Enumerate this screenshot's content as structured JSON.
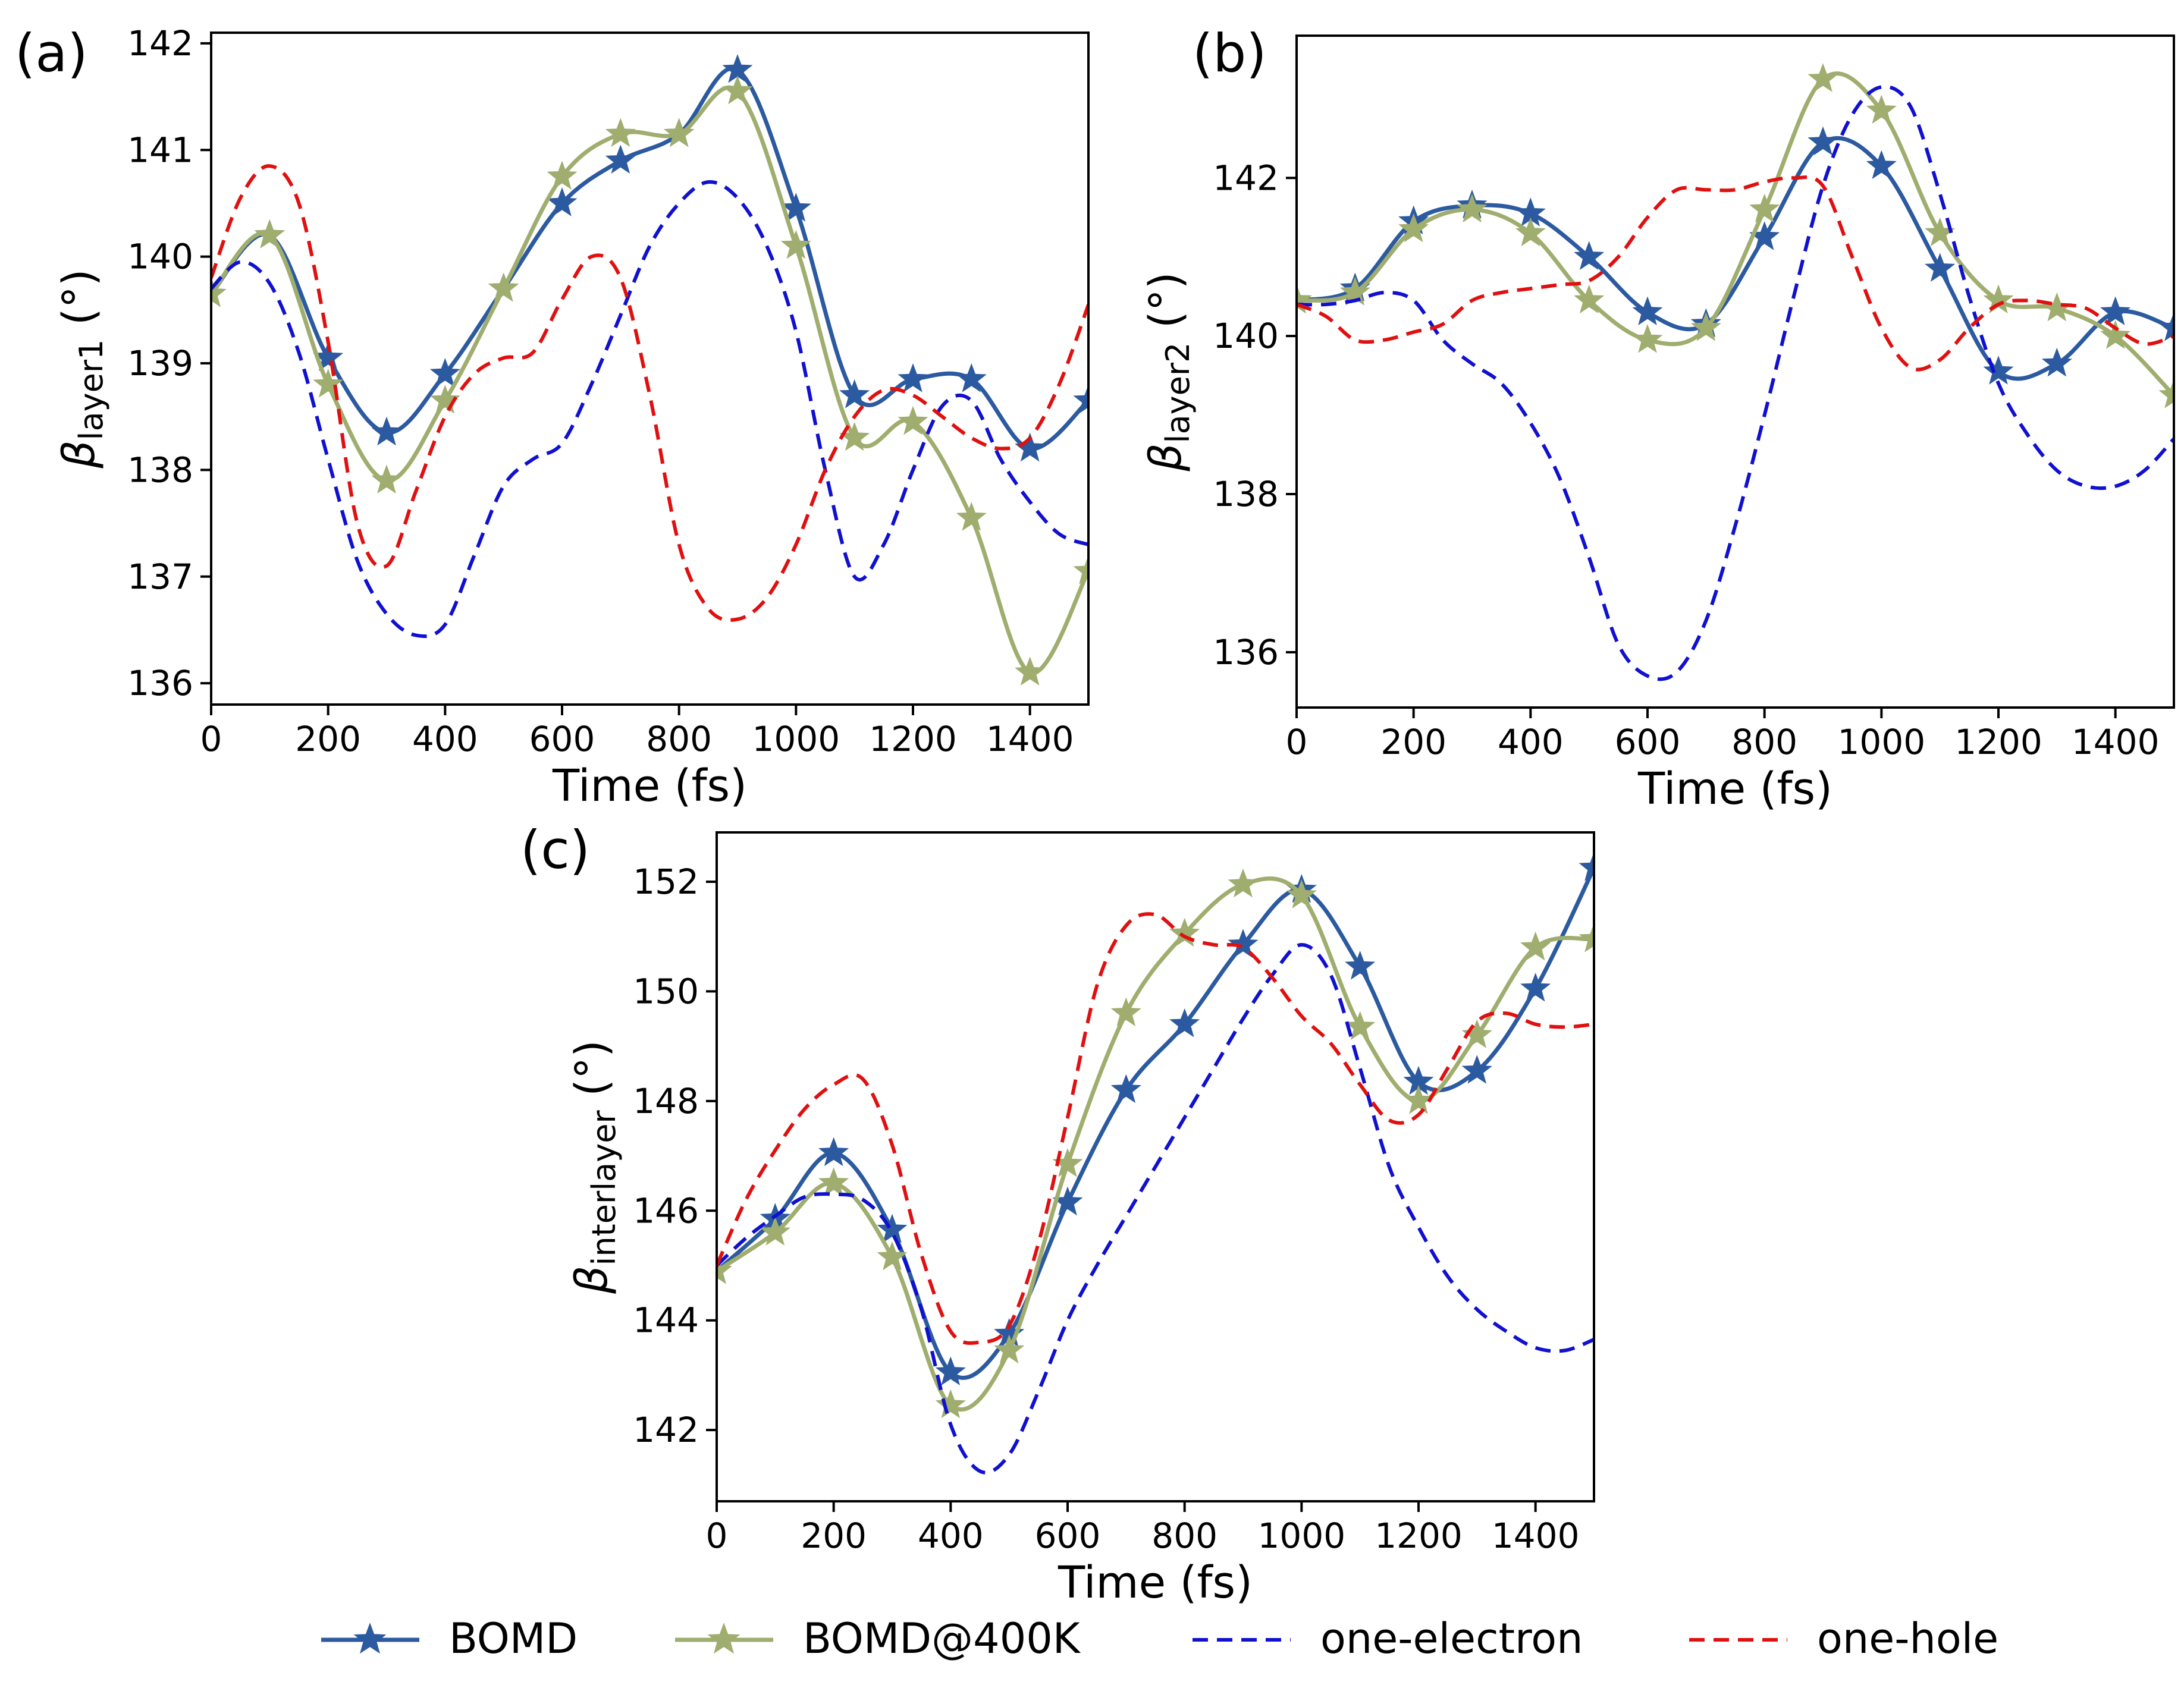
{
  "legend": [
    {
      "name": "BOMD",
      "color": "#2c5aa0",
      "style": "solid-star"
    },
    {
      "name": "BOMD@400K",
      "color": "#9fad6e",
      "style": "solid-star"
    },
    {
      "name": "one-electron",
      "color": "#1010d0",
      "style": "dashed"
    },
    {
      "name": "one-hole",
      "color": "#e01010",
      "style": "dashed"
    }
  ],
  "chart_data": [
    {
      "type": "line",
      "panel": "(a)",
      "xlabel": "Time (fs)",
      "ylabel_base": "β",
      "ylabel_sub": "layer1",
      "ylabel_unit": " (°)",
      "xlim": [
        0,
        1500
      ],
      "ylim": [
        135.8,
        142.1
      ],
      "xticks": [
        0,
        200,
        400,
        600,
        800,
        1000,
        1200,
        1400
      ],
      "yticks": [
        136,
        137,
        138,
        139,
        140,
        141,
        142
      ],
      "series": [
        {
          "name": "BOMD",
          "x": [
            0,
            100,
            200,
            300,
            400,
            500,
            600,
            700,
            800,
            900,
            1000,
            1100,
            1200,
            1300,
            1400,
            1500
          ],
          "y": [
            139.65,
            140.2,
            139.05,
            138.35,
            138.9,
            139.7,
            140.5,
            140.9,
            141.15,
            141.75,
            140.45,
            138.7,
            138.85,
            138.85,
            138.2,
            138.65
          ]
        },
        {
          "name": "BOMD@400K",
          "x": [
            0,
            100,
            200,
            300,
            400,
            500,
            600,
            700,
            800,
            900,
            1000,
            1100,
            1200,
            1300,
            1400,
            1500
          ],
          "y": [
            139.65,
            140.2,
            138.8,
            137.9,
            138.65,
            139.7,
            140.75,
            141.15,
            141.15,
            141.55,
            140.1,
            138.3,
            138.45,
            137.55,
            136.1,
            137.05
          ]
        },
        {
          "name": "one-electron",
          "x": [
            0,
            50,
            100,
            150,
            200,
            250,
            300,
            350,
            400,
            450,
            500,
            550,
            600,
            650,
            700,
            750,
            800,
            850,
            900,
            950,
            1000,
            1050,
            1100,
            1150,
            1200,
            1250,
            1300,
            1350,
            1400,
            1450,
            1500
          ],
          "y": [
            139.7,
            139.95,
            139.75,
            139.1,
            138.1,
            137.15,
            136.65,
            136.45,
            136.55,
            137.2,
            137.85,
            138.1,
            138.25,
            138.8,
            139.45,
            140.1,
            140.5,
            140.7,
            140.55,
            140.1,
            139.3,
            138.0,
            137.0,
            137.3,
            138.0,
            138.6,
            138.65,
            138.1,
            137.7,
            137.4,
            137.3
          ]
        },
        {
          "name": "one-hole",
          "x": [
            0,
            50,
            100,
            150,
            200,
            250,
            300,
            350,
            400,
            450,
            500,
            550,
            600,
            650,
            700,
            750,
            800,
            850,
            900,
            950,
            1000,
            1050,
            1100,
            1150,
            1200,
            1250,
            1300,
            1350,
            1400,
            1450,
            1500
          ],
          "y": [
            139.8,
            140.55,
            140.85,
            140.5,
            139.2,
            137.5,
            137.1,
            137.8,
            138.5,
            138.9,
            139.05,
            139.1,
            139.6,
            140.0,
            139.8,
            138.7,
            137.3,
            136.7,
            136.6,
            136.8,
            137.3,
            138.0,
            138.5,
            138.75,
            138.7,
            138.5,
            138.3,
            138.2,
            138.3,
            138.8,
            139.55
          ]
        }
      ]
    },
    {
      "type": "line",
      "panel": "(b)",
      "xlabel": "Time (fs)",
      "ylabel_base": "β",
      "ylabel_sub": "layer2",
      "ylabel_unit": " (°)",
      "xlim": [
        0,
        1500
      ],
      "ylim": [
        135.3,
        143.8
      ],
      "xticks": [
        0,
        200,
        400,
        600,
        800,
        1000,
        1200,
        1400
      ],
      "yticks": [
        136,
        138,
        140,
        142
      ],
      "series": [
        {
          "name": "BOMD",
          "x": [
            0,
            100,
            200,
            300,
            400,
            500,
            600,
            700,
            800,
            900,
            1000,
            1100,
            1200,
            1300,
            1400,
            1500
          ],
          "y": [
            140.45,
            140.6,
            141.45,
            141.65,
            141.55,
            141.0,
            140.3,
            140.15,
            141.25,
            142.45,
            142.15,
            140.85,
            139.55,
            139.65,
            140.3,
            140.1
          ]
        },
        {
          "name": "BOMD@400K",
          "x": [
            0,
            100,
            200,
            300,
            400,
            500,
            600,
            700,
            800,
            900,
            1000,
            1100,
            1200,
            1300,
            1400,
            1500
          ],
          "y": [
            140.45,
            140.55,
            141.35,
            141.6,
            141.3,
            140.45,
            139.95,
            140.1,
            141.6,
            143.25,
            142.85,
            141.3,
            140.45,
            140.35,
            140.0,
            139.25
          ]
        },
        {
          "name": "one-electron",
          "x": [
            0,
            50,
            100,
            150,
            200,
            250,
            300,
            350,
            400,
            450,
            500,
            550,
            600,
            650,
            700,
            750,
            800,
            850,
            900,
            950,
            1000,
            1050,
            1100,
            1150,
            1200,
            1250,
            1300,
            1350,
            1400,
            1450,
            1500
          ],
          "y": [
            140.4,
            140.4,
            140.45,
            140.55,
            140.45,
            139.95,
            139.65,
            139.4,
            138.9,
            138.2,
            137.2,
            136.1,
            135.7,
            135.75,
            136.4,
            137.6,
            139.0,
            140.5,
            141.9,
            142.8,
            143.15,
            142.9,
            141.8,
            140.5,
            139.4,
            138.75,
            138.3,
            138.1,
            138.1,
            138.3,
            138.7
          ]
        },
        {
          "name": "one-hole",
          "x": [
            0,
            50,
            100,
            150,
            200,
            250,
            300,
            350,
            400,
            450,
            500,
            550,
            600,
            650,
            700,
            750,
            800,
            850,
            900,
            950,
            1000,
            1050,
            1100,
            1150,
            1200,
            1250,
            1300,
            1350,
            1400,
            1450,
            1500
          ],
          "y": [
            140.4,
            140.25,
            139.95,
            139.95,
            140.05,
            140.15,
            140.45,
            140.55,
            140.6,
            140.65,
            140.7,
            141.0,
            141.5,
            141.85,
            141.85,
            141.85,
            141.95,
            142.0,
            141.9,
            141.0,
            140.1,
            139.6,
            139.7,
            140.1,
            140.4,
            140.45,
            140.4,
            140.35,
            140.1,
            139.9,
            140.0
          ]
        }
      ]
    },
    {
      "type": "line",
      "panel": "(c)",
      "xlabel": "Time (fs)",
      "ylabel_base": "β",
      "ylabel_sub": "interlayer",
      "ylabel_unit": " (°)",
      "xlim": [
        0,
        1500
      ],
      "ylim": [
        140.7,
        152.9
      ],
      "xticks": [
        0,
        200,
        400,
        600,
        800,
        1000,
        1200,
        1400
      ],
      "yticks": [
        142,
        144,
        146,
        148,
        150,
        152
      ],
      "series": [
        {
          "name": "BOMD",
          "x": [
            0,
            100,
            200,
            300,
            400,
            500,
            600,
            700,
            800,
            900,
            1000,
            1100,
            1200,
            1300,
            1400,
            1500
          ],
          "y": [
            144.9,
            145.85,
            147.05,
            145.65,
            143.05,
            143.75,
            146.15,
            148.2,
            149.4,
            150.85,
            151.85,
            150.45,
            148.35,
            148.55,
            150.05,
            152.25
          ]
        },
        {
          "name": "BOMD@400K",
          "x": [
            0,
            100,
            200,
            300,
            400,
            500,
            600,
            700,
            800,
            900,
            1000,
            1100,
            1200,
            1300,
            1400,
            1500
          ],
          "y": [
            144.9,
            145.6,
            146.5,
            145.15,
            142.45,
            143.45,
            146.85,
            149.6,
            151.05,
            151.95,
            151.75,
            149.35,
            148.0,
            149.2,
            150.8,
            150.95
          ]
        },
        {
          "name": "one-electron",
          "x": [
            0,
            50,
            100,
            150,
            200,
            250,
            300,
            350,
            400,
            450,
            500,
            550,
            600,
            650,
            700,
            750,
            800,
            850,
            900,
            950,
            1000,
            1050,
            1100,
            1150,
            1200,
            1250,
            1300,
            1350,
            1400,
            1450,
            1500
          ],
          "y": [
            145.0,
            145.5,
            145.9,
            146.25,
            146.3,
            146.2,
            145.6,
            144.2,
            142.1,
            141.25,
            141.55,
            142.7,
            144.0,
            145.0,
            145.9,
            146.8,
            147.7,
            148.6,
            149.5,
            150.3,
            150.85,
            150.3,
            148.6,
            146.8,
            145.7,
            144.8,
            144.2,
            143.8,
            143.5,
            143.45,
            143.65
          ]
        },
        {
          "name": "one-hole",
          "x": [
            0,
            50,
            100,
            150,
            200,
            250,
            300,
            350,
            400,
            450,
            500,
            550,
            600,
            650,
            700,
            750,
            800,
            850,
            900,
            950,
            1000,
            1050,
            1100,
            1150,
            1200,
            1250,
            1300,
            1350,
            1400,
            1450,
            1500
          ],
          "y": [
            145.0,
            146.2,
            147.1,
            147.85,
            148.3,
            148.4,
            147.2,
            145.2,
            143.8,
            143.6,
            143.9,
            145.4,
            147.7,
            150.1,
            151.2,
            151.4,
            151.0,
            150.85,
            150.8,
            150.25,
            149.55,
            149.05,
            148.3,
            147.65,
            147.75,
            148.6,
            149.45,
            149.6,
            149.4,
            149.35,
            149.4
          ]
        }
      ]
    }
  ]
}
